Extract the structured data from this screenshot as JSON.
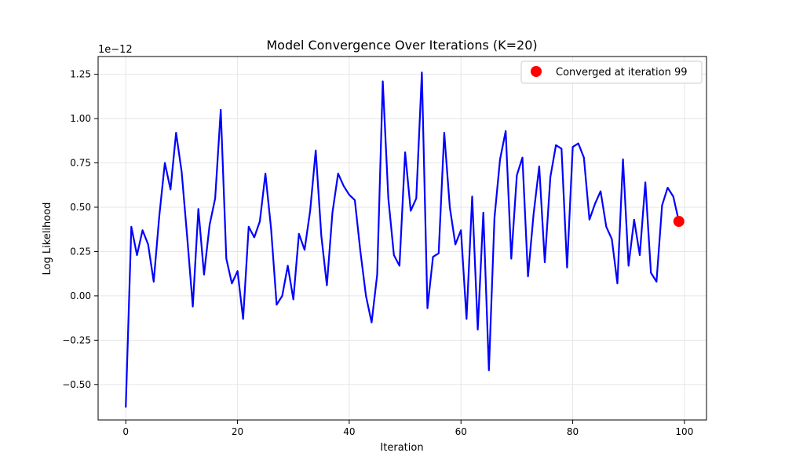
{
  "chart_data": {
    "type": "line",
    "title": "Model Convergence Over Iterations (K=20)",
    "xlabel": "Iteration",
    "ylabel": "Log Likelihood",
    "y_offset_label": "1e−12",
    "xlim": [
      -4.95,
      103.95
    ],
    "ylim": [
      -0.7,
      1.35
    ],
    "x_ticks": [
      0,
      20,
      40,
      60,
      80,
      100
    ],
    "x_tick_labels": [
      "0",
      "20",
      "40",
      "60",
      "80",
      "100"
    ],
    "y_ticks": [
      -0.5,
      -0.25,
      0,
      0.25,
      0.5,
      0.75,
      1.0,
      1.25
    ],
    "y_tick_labels": [
      "−0.50",
      "−0.25",
      "0.00",
      "0.25",
      "0.50",
      "0.75",
      "1.00",
      "1.25"
    ],
    "grid": true,
    "legend_position": "top-right",
    "series": [
      {
        "color": "#0000ff",
        "x": [
          0,
          1,
          2,
          3,
          4,
          5,
          6,
          7,
          8,
          9,
          10,
          11,
          12,
          13,
          14,
          15,
          16,
          17,
          18,
          19,
          20,
          21,
          22,
          23,
          24,
          25,
          26,
          27,
          28,
          29,
          30,
          31,
          32,
          33,
          34,
          35,
          36,
          37,
          38,
          39,
          40,
          41,
          42,
          43,
          44,
          45,
          46,
          47,
          48,
          49,
          50,
          51,
          52,
          53,
          54,
          55,
          56,
          57,
          58,
          59,
          60,
          61,
          62,
          63,
          64,
          65,
          66,
          67,
          68,
          69,
          70,
          71,
          72,
          73,
          74,
          75,
          76,
          77,
          78,
          79,
          80,
          81,
          82,
          83,
          84,
          85,
          86,
          87,
          88,
          89,
          90,
          91,
          92,
          93,
          94,
          95,
          96,
          97,
          98,
          99
        ],
        "y": [
          -0.63,
          0.39,
          0.23,
          0.37,
          0.29,
          0.08,
          0.45,
          0.75,
          0.6,
          0.92,
          0.7,
          0.33,
          -0.06,
          0.49,
          0.12,
          0.4,
          0.55,
          1.05,
          0.21,
          0.07,
          0.14,
          -0.13,
          0.39,
          0.33,
          0.42,
          0.69,
          0.38,
          -0.05,
          0.0,
          0.17,
          -0.02,
          0.35,
          0.26,
          0.48,
          0.82,
          0.34,
          0.06,
          0.47,
          0.69,
          0.62,
          0.57,
          0.54,
          0.25,
          0.0,
          -0.15,
          0.12,
          1.21,
          0.55,
          0.23,
          0.17,
          0.81,
          0.48,
          0.55,
          1.26,
          -0.07,
          0.22,
          0.24,
          0.92,
          0.5,
          0.29,
          0.37,
          -0.13,
          0.56,
          -0.19,
          0.47,
          -0.42,
          0.44,
          0.77,
          0.93,
          0.21,
          0.68,
          0.78,
          0.11,
          0.46,
          0.73,
          0.19,
          0.67,
          0.85,
          0.83,
          0.16,
          0.84,
          0.86,
          0.78,
          0.43,
          0.52,
          0.59,
          0.39,
          0.32,
          0.07,
          0.77,
          0.17,
          0.43,
          0.23,
          0.64,
          0.13,
          0.08,
          0.51,
          0.61,
          0.56,
          0.42
        ]
      }
    ],
    "highlight_point": {
      "x": 99,
      "y": 0.42,
      "color": "#ff0000",
      "name": "Converged at iteration 99"
    }
  }
}
